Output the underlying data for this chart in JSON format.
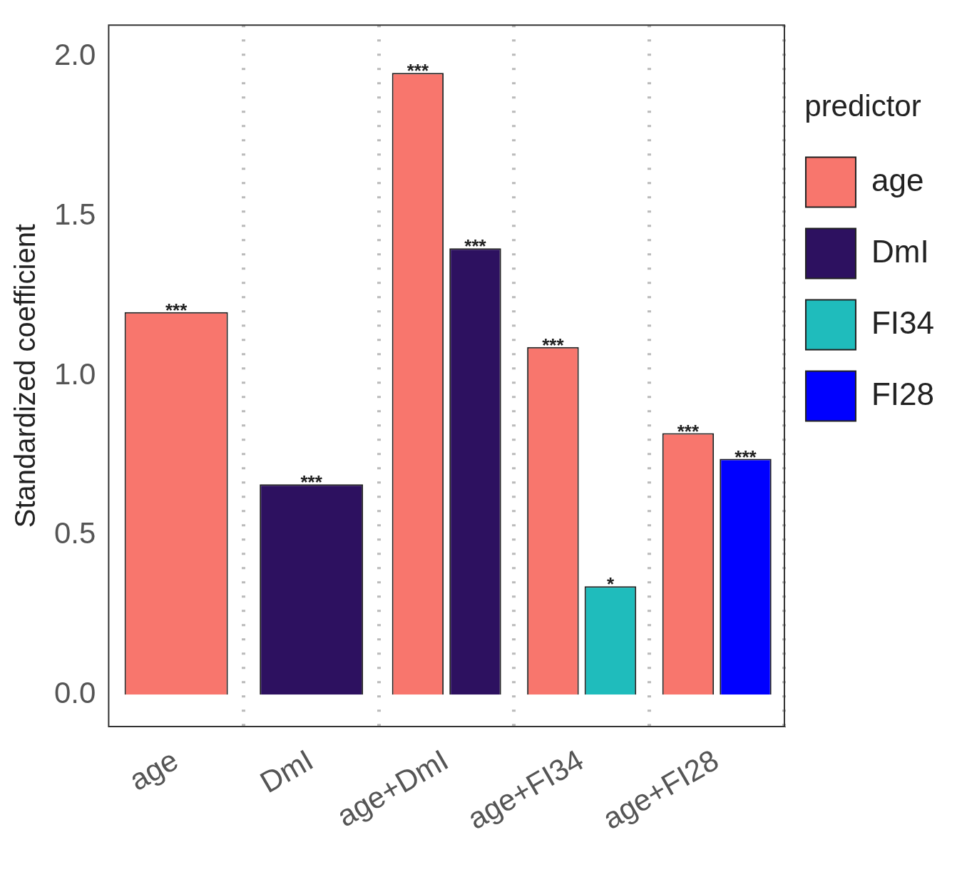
{
  "chart_data": {
    "type": "bar",
    "ylabel": "Standardized coefficient",
    "legend_title": "predictor",
    "categories": [
      "age",
      "DmI",
      "age+DmI",
      "age+FI34",
      "age+FI28"
    ],
    "series": [
      {
        "name": "age",
        "color": "#f8766d",
        "values": [
          1.2,
          null,
          1.95,
          1.09,
          0.82
        ],
        "value_labels": [
          "***",
          null,
          "***",
          "***",
          "***"
        ]
      },
      {
        "name": "DmI",
        "color": "#2d1160",
        "values": [
          null,
          0.66,
          1.4,
          null,
          null
        ],
        "value_labels": [
          null,
          "***",
          "***",
          null,
          null
        ]
      },
      {
        "name": "FI34",
        "color": "#1fbcbc",
        "values": [
          null,
          null,
          null,
          0.34,
          null
        ],
        "value_labels": [
          null,
          null,
          null,
          "*",
          null
        ]
      },
      {
        "name": "FI28",
        "color": "#0000ff",
        "values": [
          null,
          null,
          null,
          null,
          0.74
        ],
        "value_labels": [
          null,
          null,
          null,
          null,
          "***"
        ]
      }
    ],
    "ylim": [
      -0.1,
      2.1
    ],
    "yticks": [
      {
        "value": 0,
        "label": "0.0"
      },
      0.5,
      {
        "value": 1,
        "label": "1.0"
      },
      1.5,
      {
        "value": 2,
        "label": "2.0"
      }
    ],
    "grid": "x",
    "legend": "right"
  }
}
